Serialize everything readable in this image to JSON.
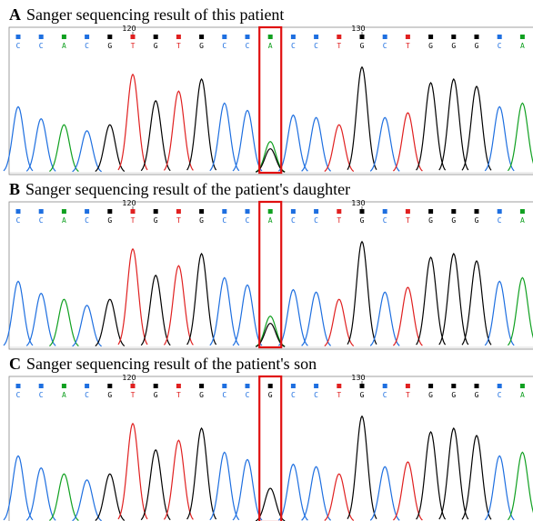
{
  "panels": [
    {
      "label": "A",
      "title": "Sanger sequencing result of this patient",
      "bases": [
        "C",
        "C",
        "A",
        "C",
        "G",
        "T",
        "G",
        "T",
        "G",
        "C",
        "C",
        "A",
        "C",
        "C",
        "T",
        "G",
        "C",
        "T",
        "G",
        "G",
        "G",
        "C",
        "A"
      ],
      "ruler": [
        null,
        null,
        null,
        null,
        null,
        "120",
        null,
        null,
        null,
        null,
        null,
        null,
        null,
        null,
        null,
        "130",
        null,
        null,
        null,
        null,
        null,
        null,
        null
      ]
    },
    {
      "label": "B",
      "title": "Sanger sequencing result of  the patient's daughter",
      "bases": [
        "C",
        "C",
        "A",
        "C",
        "G",
        "T",
        "G",
        "T",
        "G",
        "C",
        "C",
        "A",
        "C",
        "C",
        "T",
        "G",
        "C",
        "T",
        "G",
        "G",
        "G",
        "C",
        "A"
      ],
      "ruler": [
        null,
        null,
        null,
        null,
        null,
        "120",
        null,
        null,
        null,
        null,
        null,
        null,
        null,
        null,
        null,
        "130",
        null,
        null,
        null,
        null,
        null,
        null,
        null
      ]
    },
    {
      "label": "C",
      "title": "Sanger sequencing result of  the patient's son",
      "bases": [
        "C",
        "C",
        "A",
        "C",
        "G",
        "T",
        "G",
        "T",
        "G",
        "C",
        "C",
        "G",
        "C",
        "C",
        "T",
        "G",
        "C",
        "T",
        "G",
        "G",
        "G",
        "C",
        "A"
      ],
      "ruler": [
        null,
        null,
        null,
        null,
        null,
        "120",
        null,
        null,
        null,
        null,
        null,
        null,
        null,
        null,
        null,
        "130",
        null,
        null,
        null,
        null,
        null,
        null,
        null
      ]
    }
  ],
  "base_colors": {
    "A": "#10a020",
    "C": "#1e6fe0",
    "G": "#000000",
    "T": "#e02020"
  }
}
